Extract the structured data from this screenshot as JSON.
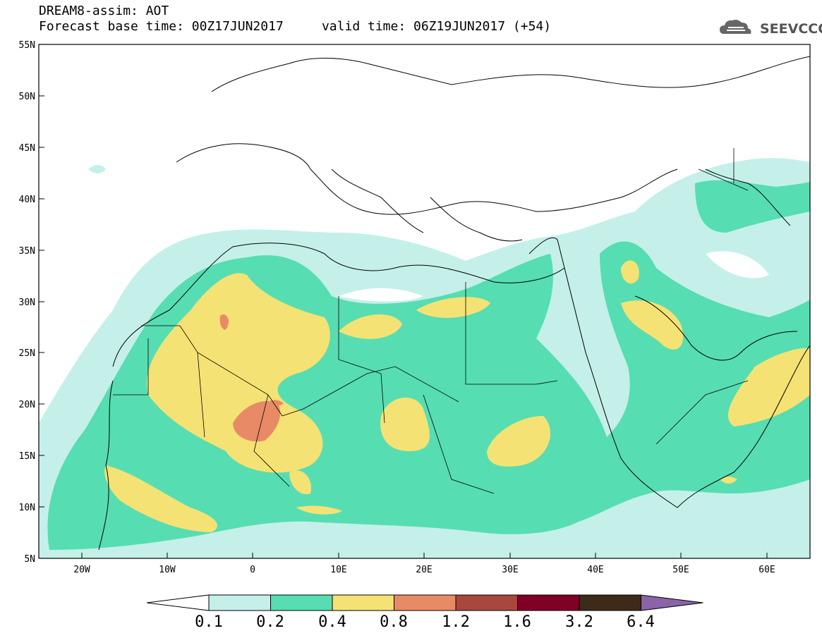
{
  "header": {
    "line1": "DREAM8-assim: AOT",
    "line2": "Forecast base time: 00Z17JUN2017     valid time: 06Z19JUN2017 (+54)"
  },
  "logo": {
    "text": "SEEVCCC",
    "icon": "cloud-icon"
  },
  "map": {
    "lat_labels": [
      "55N",
      "50N",
      "45N",
      "40N",
      "35N",
      "30N",
      "25N",
      "20N",
      "15N",
      "10N",
      "5N"
    ],
    "lon_labels": [
      "20W",
      "10W",
      "0",
      "10E",
      "20E",
      "30E",
      "40E",
      "50E",
      "60E"
    ]
  },
  "colorbar": {
    "labels": [
      "0.1",
      "0.2",
      "0.4",
      "0.8",
      "1.2",
      "1.6",
      "3.2",
      "6.4"
    ],
    "colors": [
      "#ffffff",
      "#c4f0e9",
      "#57ddb2",
      "#f5e274",
      "#e98a66",
      "#a9473c",
      "#800026",
      "#3d2a18",
      "#8a63a8"
    ]
  }
}
